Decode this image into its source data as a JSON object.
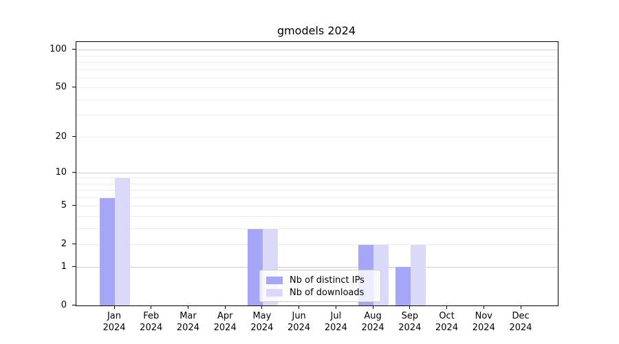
{
  "figure": {
    "title": "gmodels 2024"
  },
  "chart_data": {
    "type": "bar",
    "title": "gmodels 2024",
    "categories": [
      "Jan",
      "Feb",
      "Mar",
      "Apr",
      "May",
      "Jun",
      "Jul",
      "Aug",
      "Sep",
      "Oct",
      "Nov",
      "Dec"
    ],
    "category_year": "2024",
    "series": [
      {
        "name": "Nb of distinct IPs",
        "color": "#a6a6f6",
        "values": [
          6,
          0,
          0,
          0,
          3,
          0,
          0,
          2,
          1,
          0,
          0,
          0
        ]
      },
      {
        "name": "Nb of downloads",
        "color": "#dadaf8",
        "values": [
          9,
          0,
          0,
          0,
          3,
          0,
          0,
          2,
          2,
          0,
          0,
          0
        ]
      }
    ],
    "xlabel": "",
    "ylabel": "",
    "yscale": "log1p",
    "ylim": [
      0,
      116
    ],
    "yticks": [
      0,
      1,
      2,
      5,
      10,
      20,
      50,
      100
    ],
    "grid": {
      "orientation": "horizontal",
      "major_values": [
        1,
        10,
        100
      ],
      "minor_values": [
        2,
        3,
        4,
        5,
        6,
        7,
        8,
        9,
        20,
        30,
        40,
        50,
        60,
        70,
        80,
        90
      ],
      "major_color": "#cccccc",
      "minor_color": "#ececec"
    },
    "legend": {
      "position": "lower center inside",
      "labels": [
        "Nb of distinct IPs",
        "Nb of downloads"
      ]
    },
    "axis_color": "#000000",
    "background_color": "#ffffff"
  }
}
